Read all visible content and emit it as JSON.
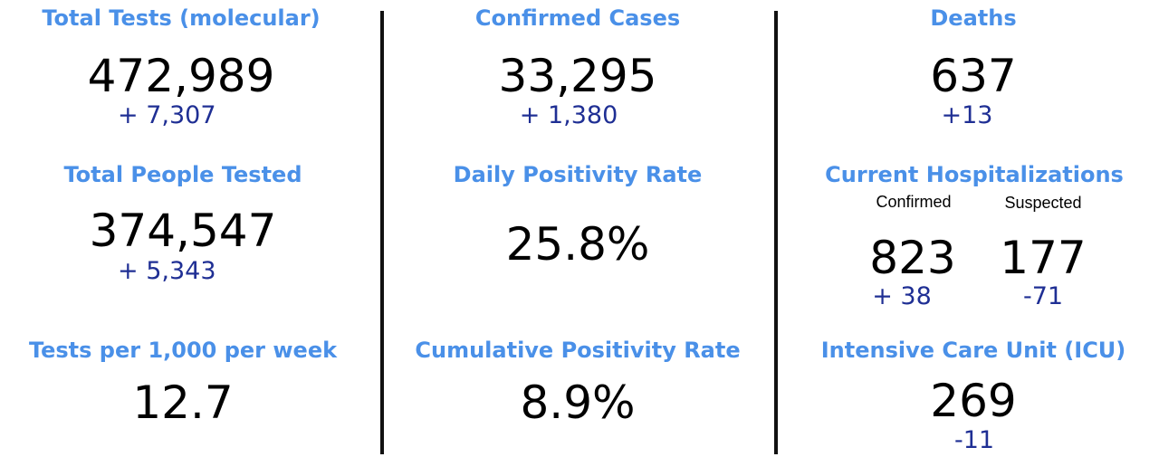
{
  "colors": {
    "title": "#4a90e8",
    "value": "#000000",
    "delta": "#1f2f94",
    "divider": "#111111"
  },
  "col1": {
    "total_tests": {
      "title": "Total Tests (molecular)",
      "value": "472,989",
      "delta": "+  7,307"
    },
    "people_tested": {
      "title": "Total People Tested",
      "value": "374,547",
      "delta": "+  5,343"
    },
    "tests_per_1000": {
      "title": "Tests per 1,000 per week",
      "value": "12.7"
    }
  },
  "col2": {
    "confirmed_cases": {
      "title": "Confirmed Cases",
      "value": "33,295",
      "delta": "+ 1,380"
    },
    "daily_positivity": {
      "title": "Daily Positivity Rate",
      "value": "25.8%"
    },
    "cumulative_positivity": {
      "title": "Cumulative Positivity Rate",
      "value": "8.9%"
    }
  },
  "col3": {
    "deaths": {
      "title": "Deaths",
      "value": "637",
      "delta": "+13"
    },
    "hospitalizations": {
      "title": "Current Hospitalizations",
      "confirmed": {
        "label": "Confirmed",
        "value": "823",
        "delta": "+ 38"
      },
      "suspected": {
        "label": "Suspected",
        "value": "177",
        "delta": "-71"
      }
    },
    "icu": {
      "title": "Intensive Care Unit (ICU)",
      "value": "269",
      "delta": "-11"
    }
  }
}
